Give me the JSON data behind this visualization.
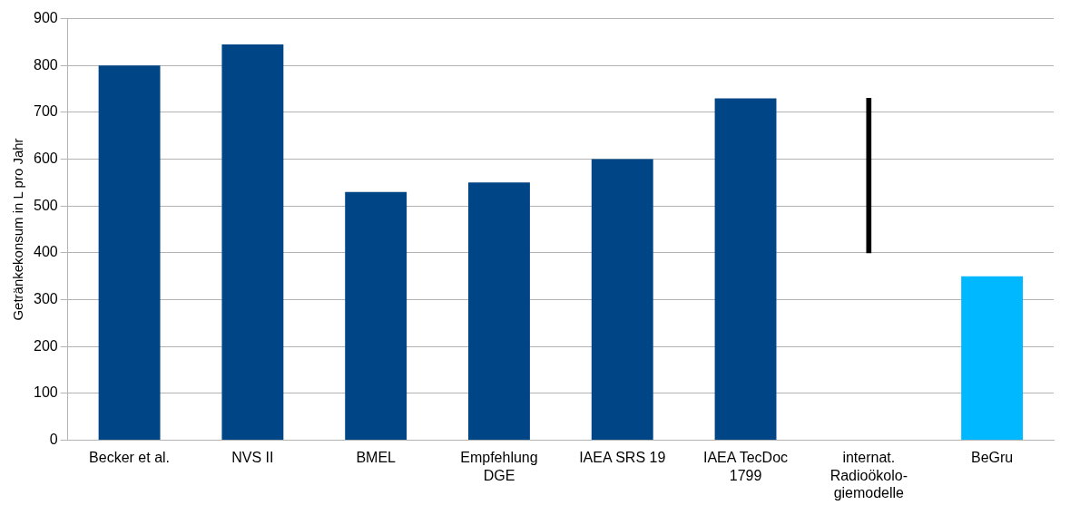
{
  "chart_data": {
    "type": "bar",
    "ylabel": "Getränkekonsum in L pro Jahr",
    "categories": [
      "Becker et al.",
      "NVS II",
      "BMEL",
      "Empfehlung DGE",
      "IAEA SRS 19",
      "IAEA TecDoc 1799",
      "internat. Radioökolo-giemodelle",
      "BeGru"
    ],
    "values": [
      800,
      845,
      530,
      550,
      600,
      730,
      330,
      350
    ],
    "base": [
      0,
      0,
      0,
      0,
      0,
      0,
      400,
      0
    ],
    "colors": [
      "#004586",
      "#004586",
      "#004586",
      "#004586",
      "#004586",
      "#004586",
      "#000000",
      "#00b8ff"
    ],
    "ylim": [
      0,
      900
    ],
    "yticks": [
      0,
      100,
      200,
      300,
      400,
      500,
      600,
      700,
      800,
      900
    ],
    "grid": "y",
    "legend": false
  }
}
